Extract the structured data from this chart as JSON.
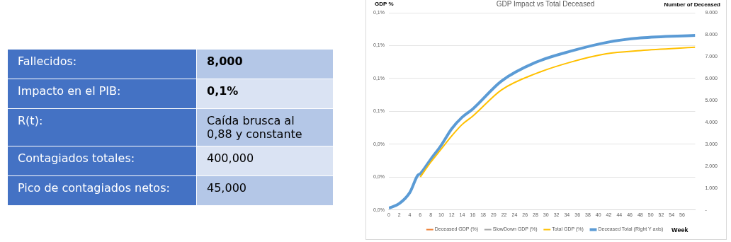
{
  "chart_data": [
    {
      "type": "other",
      "annotations": [
        "Fallecidos:",
        "8,000",
        "Impacto en el PIB:",
        "0,1%",
        "R(t):",
        "Caída brusca al 0,88 y constante",
        "Contagiados totales:",
        "400,000",
        "Pico de contagiados netos:",
        "45,000"
      ]
    },
    {
      "type": "line",
      "title": "GDP Impact vs Total Deceased",
      "xlabel": "Week",
      "ylabel": "GDP %",
      "y2label": "Number of Deceased",
      "xlim": [
        0,
        58.5
      ],
      "xticks": [
        0,
        2,
        4,
        6,
        8,
        10,
        12,
        14,
        16,
        18,
        20,
        22,
        24,
        26,
        28,
        30,
        32,
        34,
        36,
        38,
        40,
        42,
        44,
        46,
        48,
        50,
        52,
        54,
        56
      ],
      "ylim": [
        0,
        0.12
      ],
      "yticks": [
        {
          "value": 0,
          "label": "0,0%"
        },
        {
          "value": 0.02,
          "label": "0,0%"
        },
        {
          "value": 0.04,
          "label": "0,0%"
        },
        {
          "value": 0.06,
          "label": "0,1%"
        },
        {
          "value": 0.08,
          "label": "0,1%"
        },
        {
          "value": 0.1,
          "label": "0,1%"
        },
        {
          "value": 0.12,
          "label": "0,1%"
        }
      ],
      "y2lim": [
        0,
        9000
      ],
      "y2ticks": [
        {
          "value": 0,
          "label": "-"
        },
        {
          "value": 1000,
          "label": "1.000"
        },
        {
          "value": 2000,
          "label": "2.000"
        },
        {
          "value": 3000,
          "label": "3.000"
        },
        {
          "value": 4000,
          "label": "4.000"
        },
        {
          "value": 5000,
          "label": "5.000"
        },
        {
          "value": 6000,
          "label": "6.000"
        },
        {
          "value": 7000,
          "label": "7.000"
        },
        {
          "value": 8000,
          "label": "8.000"
        },
        {
          "value": 9000,
          "label": "9.000"
        }
      ],
      "grid": "y",
      "legend": "bottom",
      "marker": "none",
      "line_style": "solid",
      "series": [
        {
          "name": "Deceased GDP (%)",
          "color": "#ed7d31"
        },
        {
          "name": "SlowDown GDP (%)",
          "color": "#a5a5a5"
        },
        {
          "name": "Total GDP (%)",
          "color": "#ffc000",
          "x": [
            6,
            8,
            10,
            12,
            14,
            16,
            21.5,
            28.1,
            34.8,
            41.5,
            48.1,
            58.5
          ],
          "values": [
            0.02,
            0.029,
            0.037,
            0.045,
            0.052,
            0.057,
            0.073,
            0.083,
            0.09,
            0.095,
            0.097,
            0.099
          ]
        },
        {
          "name": "Deceased Total (Right Y axis)",
          "color": "#5b9bd5",
          "axis": "y2",
          "x": [
            0,
            2,
            4,
            5.5,
            6,
            8,
            10,
            12,
            14,
            16,
            21.5,
            28.1,
            34.8,
            41.5,
            48.1,
            58.5
          ],
          "values": [
            80,
            290,
            790,
            1570,
            1650,
            2310,
            2950,
            3700,
            4230,
            4600,
            5880,
            6740,
            7250,
            7640,
            7850,
            7970
          ]
        }
      ]
    }
  ]
}
